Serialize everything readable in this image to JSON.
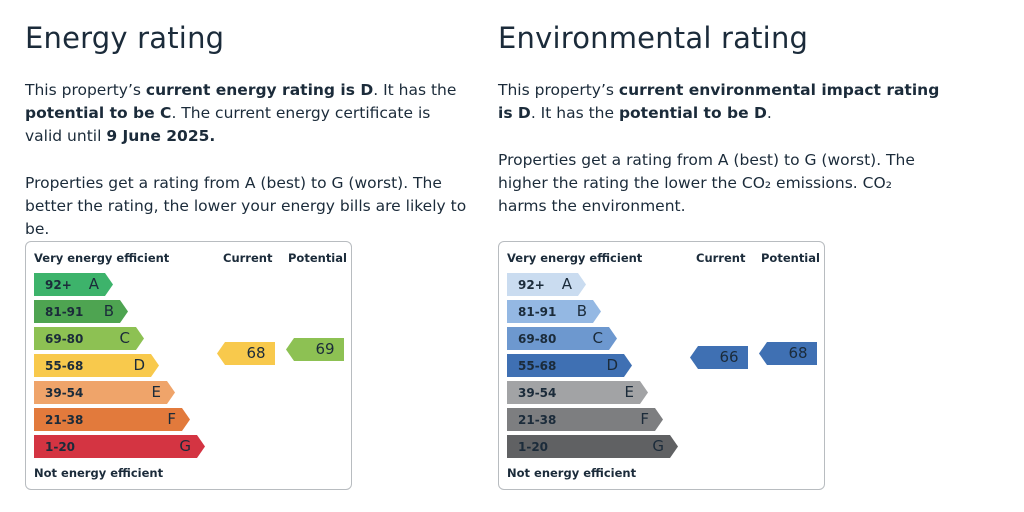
{
  "energy": {
    "title": "Energy rating",
    "p1": {
      "t1": "This property’s ",
      "b1": "current energy rating is D",
      "t2": ". It has the ",
      "b2": "potential to be C",
      "t3": ". The current energy certificate is valid until ",
      "b3": "9 June 2025."
    },
    "p2": "Properties get a rating from A (best) to G (worst). The better the rating, the lower your energy bills are likely to be.",
    "chart": {
      "top_label": "Very energy efficient",
      "bottom_label": "Not energy efficient",
      "current_label": "Current",
      "potential_label": "Potential",
      "current_value": "68",
      "potential_value": "69",
      "current_band": "D",
      "potential_band": "C",
      "current_color": "#f8c94c",
      "potential_color": "#8dc153",
      "bands": [
        {
          "range": "92+",
          "letter": "A",
          "color": "#3db36b"
        },
        {
          "range": "81-91",
          "letter": "B",
          "color": "#4ea451"
        },
        {
          "range": "69-80",
          "letter": "C",
          "color": "#8dc153"
        },
        {
          "range": "55-68",
          "letter": "D",
          "color": "#f8c94c"
        },
        {
          "range": "39-54",
          "letter": "E",
          "color": "#efa46a"
        },
        {
          "range": "21-38",
          "letter": "F",
          "color": "#e27a3c"
        },
        {
          "range": "1-20",
          "letter": "G",
          "color": "#d43442"
        }
      ]
    }
  },
  "environment": {
    "title": "Environmental rating",
    "p1": {
      "t1": "This property’s ",
      "b1": "current environmental impact rating is D",
      "t2": ". It has the ",
      "b2": "potential to be D",
      "t3": "."
    },
    "p2": "Properties get a rating from A (best) to G (worst). The higher the rating the lower the CO₂ emissions. CO₂ harms the environment.",
    "chart": {
      "top_label": "Very energy efficient",
      "bottom_label": "Not energy efficient",
      "current_label": "Current",
      "potential_label": "Potential",
      "current_value": "66",
      "potential_value": "68",
      "current_band": "D",
      "potential_band": "D",
      "current_color": "#3f70b3",
      "potential_color": "#3f70b3",
      "bands": [
        {
          "range": "92+",
          "letter": "A",
          "color": "#cadcf0"
        },
        {
          "range": "81-91",
          "letter": "B",
          "color": "#94b8e3"
        },
        {
          "range": "69-80",
          "letter": "C",
          "color": "#6d98cf"
        },
        {
          "range": "55-68",
          "letter": "D",
          "color": "#3f70b3"
        },
        {
          "range": "39-54",
          "letter": "E",
          "color": "#a2a3a5"
        },
        {
          "range": "21-38",
          "letter": "F",
          "color": "#7d7e80"
        },
        {
          "range": "1-20",
          "letter": "G",
          "color": "#606163"
        }
      ]
    }
  }
}
